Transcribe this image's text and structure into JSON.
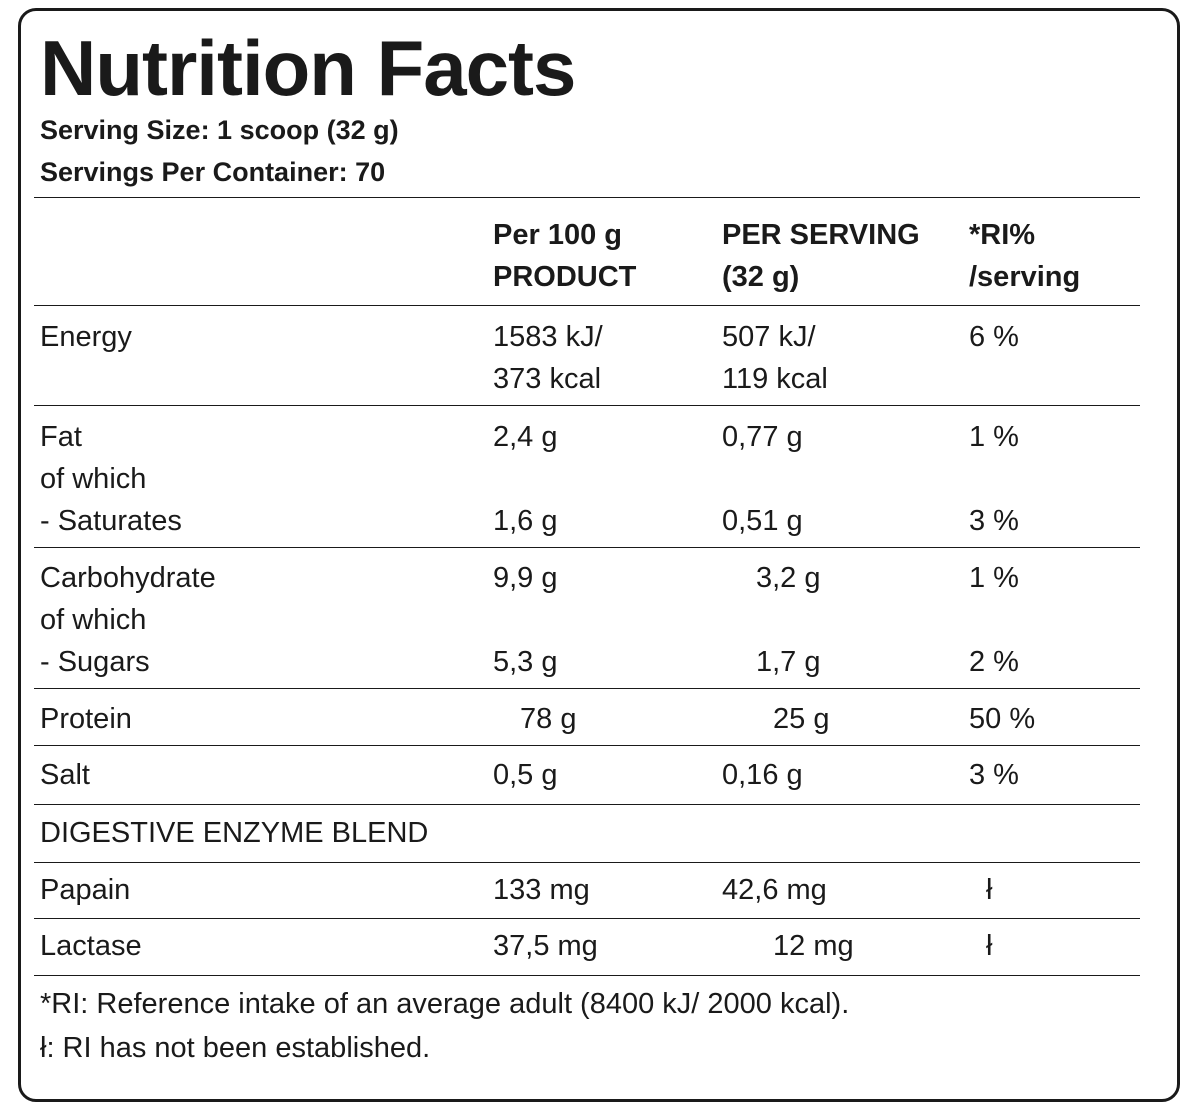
{
  "title": "Nutrition Facts",
  "serving_size": "Serving Size: 1 scoop (32 g)",
  "servings_per_container": "Servings Per Container: 70",
  "columns": {
    "per100_line1": "Per 100 g",
    "per100_line2": "PRODUCT",
    "serving_line1": "PER SERVING",
    "serving_line2": "(32 g)",
    "ri_line1": "*RI%",
    "ri_line2": "/serving"
  },
  "rows": {
    "energy": {
      "name": "Energy",
      "p100_a": "1583 kJ/",
      "p100_b": "373 kcal",
      "serv_a": "507 kJ/",
      "serv_b": "119 kcal",
      "ri": "6 %"
    },
    "fat": {
      "name": "Fat",
      "p100": "2,4 g",
      "serv": "0,77 g",
      "ri": "1 %"
    },
    "fat_of_which": "of which",
    "saturates": {
      "name": "- Saturates",
      "p100": "1,6 g",
      "serv": "0,51 g",
      "ri": "3 %"
    },
    "carbohydrate": {
      "name": "Carbohydrate",
      "p100": "9,9 g",
      "serv": "3,2 g",
      "ri": "1 %"
    },
    "carb_of_which": "of which",
    "sugars": {
      "name": "- Sugars",
      "p100": "5,3 g",
      "serv": "1,7 g",
      "ri": "2 %"
    },
    "protein": {
      "name": "Protein",
      "p100": "78 g",
      "serv": "25 g",
      "ri": "50 %"
    },
    "salt": {
      "name": "Salt",
      "p100": "0,5 g",
      "serv": "0,16 g",
      "ri": "3 %"
    },
    "enzyme_blend": "DIGESTIVE ENZYME BLEND",
    "papain": {
      "name": "Papain",
      "p100": "133 mg",
      "serv": "42,6 mg",
      "ri": "ł"
    },
    "lactase": {
      "name": "Lactase",
      "p100": "37,5 mg",
      "serv": "12 mg",
      "ri": "ł"
    }
  },
  "footnotes": {
    "ri": "*RI: Reference intake of an average adult (8400 kJ/ 2000 kcal).",
    "not_established": "ł: RI has not been established."
  }
}
